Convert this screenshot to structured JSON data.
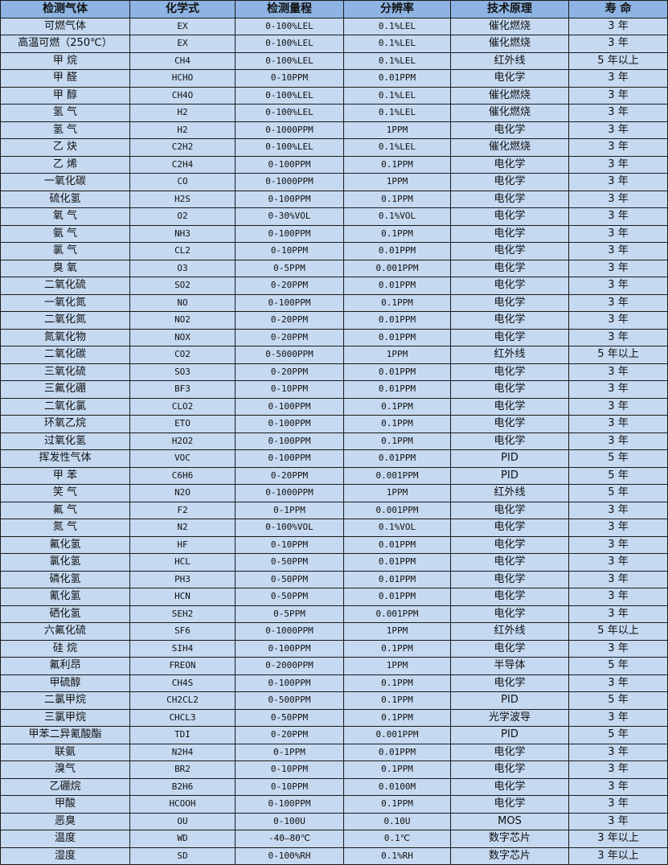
{
  "colors": {
    "header_bg": "#8db4e2",
    "row_bg": "#c5d9f1",
    "border": "#1a1a1a"
  },
  "table": {
    "headers": [
      "检测气体",
      "化学式",
      "检测量程",
      "分辨率",
      "技术原理",
      "寿 命"
    ],
    "rows": [
      [
        "可燃气体",
        "EX",
        "0-100%LEL",
        "0.1%LEL",
        "催化燃烧",
        "3 年"
      ],
      [
        "高温可燃（250℃）",
        "EX",
        "0-100%LEL",
        "0.1%LEL",
        "催化燃烧",
        "3 年"
      ],
      [
        "甲 烷",
        "CH4",
        "0-100%LEL",
        "0.1%LEL",
        "红外线",
        "5 年以上"
      ],
      [
        "甲 醛",
        "HCHO",
        "0-10PPM",
        "0.01PPM",
        "电化学",
        "3 年"
      ],
      [
        "甲 醇",
        "CH4O",
        "0-100%LEL",
        "0.1%LEL",
        "催化燃烧",
        "3 年"
      ],
      [
        "氢 气",
        "H2",
        "0-100%LEL",
        "0.1%LEL",
        "催化燃烧",
        "3 年"
      ],
      [
        "氢 气",
        "H2",
        "0-1000PPM",
        "1PPM",
        "电化学",
        "3 年"
      ],
      [
        "乙 炔",
        "C2H2",
        "0-100%LEL",
        "0.1%LEL",
        "催化燃烧",
        "3 年"
      ],
      [
        "乙 烯",
        "C2H4",
        "0-100PPM",
        "0.1PPM",
        "电化学",
        "3 年"
      ],
      [
        "一氧化碳",
        "CO",
        "0-1000PPM",
        "1PPM",
        "电化学",
        "3 年"
      ],
      [
        "硫化氢",
        "H2S",
        "0-100PPM",
        "0.1PPM",
        "电化学",
        "3 年"
      ],
      [
        "氧 气",
        "O2",
        "0-30%VOL",
        "0.1%VOL",
        "电化学",
        "3 年"
      ],
      [
        "氨 气",
        "NH3",
        "0-100PPM",
        "0.1PPM",
        "电化学",
        "3 年"
      ],
      [
        "氯 气",
        "CL2",
        "0-10PPM",
        "0.01PPM",
        "电化学",
        "3 年"
      ],
      [
        "臭 氧",
        "O3",
        "0-5PPM",
        "0.001PPM",
        "电化学",
        "3 年"
      ],
      [
        "二氧化硫",
        "SO2",
        "0-20PPM",
        "0.01PPM",
        "电化学",
        "3 年"
      ],
      [
        "一氧化氮",
        "NO",
        "0-100PPM",
        "0.1PPM",
        "电化学",
        "3 年"
      ],
      [
        "二氧化氮",
        "NO2",
        "0-20PPM",
        "0.01PPM",
        "电化学",
        "3 年"
      ],
      [
        "氮氧化物",
        "NOX",
        "0-20PPM",
        "0.01PPM",
        "电化学",
        "3 年"
      ],
      [
        "二氧化碳",
        "CO2",
        "0-5000PPM",
        "1PPM",
        "红外线",
        "5 年以上"
      ],
      [
        "三氧化硫",
        "SO3",
        "0-20PPM",
        "0.01PPM",
        "电化学",
        "3 年"
      ],
      [
        "三氟化硼",
        "BF3",
        "0-10PPM",
        "0.01PPM",
        "电化学",
        "3 年"
      ],
      [
        "二氧化氯",
        "CLO2",
        "0-100PPM",
        "0.1PPM",
        "电化学",
        "3 年"
      ],
      [
        "环氧乙烷",
        "ETO",
        "0-100PPM",
        "0.1PPM",
        "电化学",
        "3 年"
      ],
      [
        "过氧化氢",
        "H2O2",
        "0-100PPM",
        "0.1PPM",
        "电化学",
        "3 年"
      ],
      [
        "挥发性气体",
        "VOC",
        "0-100PPM",
        "0.01PPM",
        "PID",
        "5 年"
      ],
      [
        "甲 苯",
        "C6H6",
        "0-20PPM",
        "0.001PPM",
        "PID",
        "5 年"
      ],
      [
        "笑 气",
        "N2O",
        "0-1000PPM",
        "1PPM",
        "红外线",
        "5 年"
      ],
      [
        "氟 气",
        "F2",
        "0-1PPM",
        "0.001PPM",
        "电化学",
        "3 年"
      ],
      [
        "氮 气",
        "N2",
        "0-100%VOL",
        "0.1%VOL",
        "电化学",
        "3 年"
      ],
      [
        "氟化氢",
        "HF",
        "0-10PPM",
        "0.01PPM",
        "电化学",
        "3 年"
      ],
      [
        "氯化氢",
        "HCL",
        "0-50PPM",
        "0.01PPM",
        "电化学",
        "3 年"
      ],
      [
        "磷化氢",
        "PH3",
        "0-50PPM",
        "0.01PPM",
        "电化学",
        "3 年"
      ],
      [
        "氰化氢",
        "HCN",
        "0-50PPM",
        "0.01PPM",
        "电化学",
        "3 年"
      ],
      [
        "硒化氢",
        "SEH2",
        "0-5PPM",
        "0.001PPM",
        "电化学",
        "3 年"
      ],
      [
        "六氟化硫",
        "SF6",
        "0-1000PPM",
        "1PPM",
        "红外线",
        "5 年以上"
      ],
      [
        "硅 烷",
        "SIH4",
        "0-100PPM",
        "0.1PPM",
        "电化学",
        "3 年"
      ],
      [
        "氟利昂",
        "FREON",
        "0-2000PPM",
        "1PPM",
        "半导体",
        "5 年"
      ],
      [
        "甲硫醇",
        "CH4S",
        "0-100PPM",
        "0.1PPM",
        "电化学",
        "3 年"
      ],
      [
        "二氯甲烷",
        "CH2CL2",
        "0-500PPM",
        "0.1PPM",
        "PID",
        "5 年"
      ],
      [
        "三氯甲烷",
        "CHCL3",
        "0-50PPM",
        "0.1PPM",
        "光学波导",
        "3 年"
      ],
      [
        "甲苯二异氰酸酯",
        "TDI",
        "0-20PPM",
        "0.001PPM",
        "PID",
        "5 年"
      ],
      [
        "联氨",
        "N2H4",
        "0-1PPM",
        "0.01PPM",
        "电化学",
        "3 年"
      ],
      [
        "溴气",
        "BR2",
        "0-10PPM",
        "0.1PPM",
        "电化学",
        "3 年"
      ],
      [
        "乙硼烷",
        "B2H6",
        "0-10PPM",
        "0.0100M",
        "电化学",
        "3 年"
      ],
      [
        "甲酸",
        "HCOOH",
        "0-100PPM",
        "0.1PPM",
        "电化学",
        "3 年"
      ],
      [
        "恶臭",
        "OU",
        "0-100U",
        "0.10U",
        "MOS",
        "3 年"
      ],
      [
        "温度",
        "WD",
        "-40—80℃",
        "0.1℃",
        "数字芯片",
        "3 年以上"
      ],
      [
        "湿度",
        "SD",
        "0-100%RH",
        "0.1%RH",
        "数字芯片",
        "3 年以上"
      ]
    ]
  }
}
